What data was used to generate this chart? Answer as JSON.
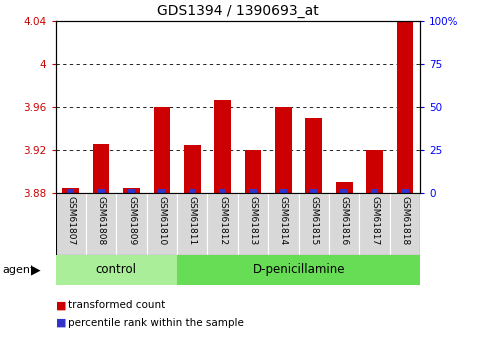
{
  "title": "GDS1394 / 1390693_at",
  "samples": [
    "GSM61807",
    "GSM61808",
    "GSM61809",
    "GSM61810",
    "GSM61811",
    "GSM61812",
    "GSM61813",
    "GSM61814",
    "GSM61815",
    "GSM61816",
    "GSM61817",
    "GSM61818"
  ],
  "red_values": [
    3.885,
    3.926,
    3.885,
    3.96,
    3.925,
    3.966,
    3.92,
    3.96,
    3.95,
    3.89,
    3.92,
    4.04
  ],
  "blue_percentile": [
    6,
    7,
    8,
    8,
    7,
    6,
    6,
    7,
    8,
    7,
    6,
    7
  ],
  "ymin": 3.88,
  "ymax": 4.04,
  "yticks": [
    3.88,
    3.92,
    3.96,
    4.0,
    4.04
  ],
  "ytick_labels": [
    "3.88",
    "3.92",
    "3.96",
    "4",
    "4.04"
  ],
  "y2ticks": [
    0,
    25,
    50,
    75,
    100
  ],
  "y2tick_labels": [
    "0",
    "25",
    "50",
    "75",
    "100%"
  ],
  "n_control": 4,
  "n_treatment": 8,
  "control_label": "control",
  "treatment_label": "D-penicillamine",
  "agent_label": "agent",
  "legend_red": "transformed count",
  "legend_blue": "percentile rank within the sample",
  "bar_width": 0.55,
  "red_color": "#cc0000",
  "blue_color": "#3333cc",
  "tick_bg": "#d8d8d8",
  "control_bg": "#aaee99",
  "treatment_bg": "#66dd55",
  "title_fontsize": 10,
  "label_fontsize": 6.5,
  "group_fontsize": 8.5,
  "legend_fontsize": 7.5,
  "ytick_fontsize": 7.5
}
